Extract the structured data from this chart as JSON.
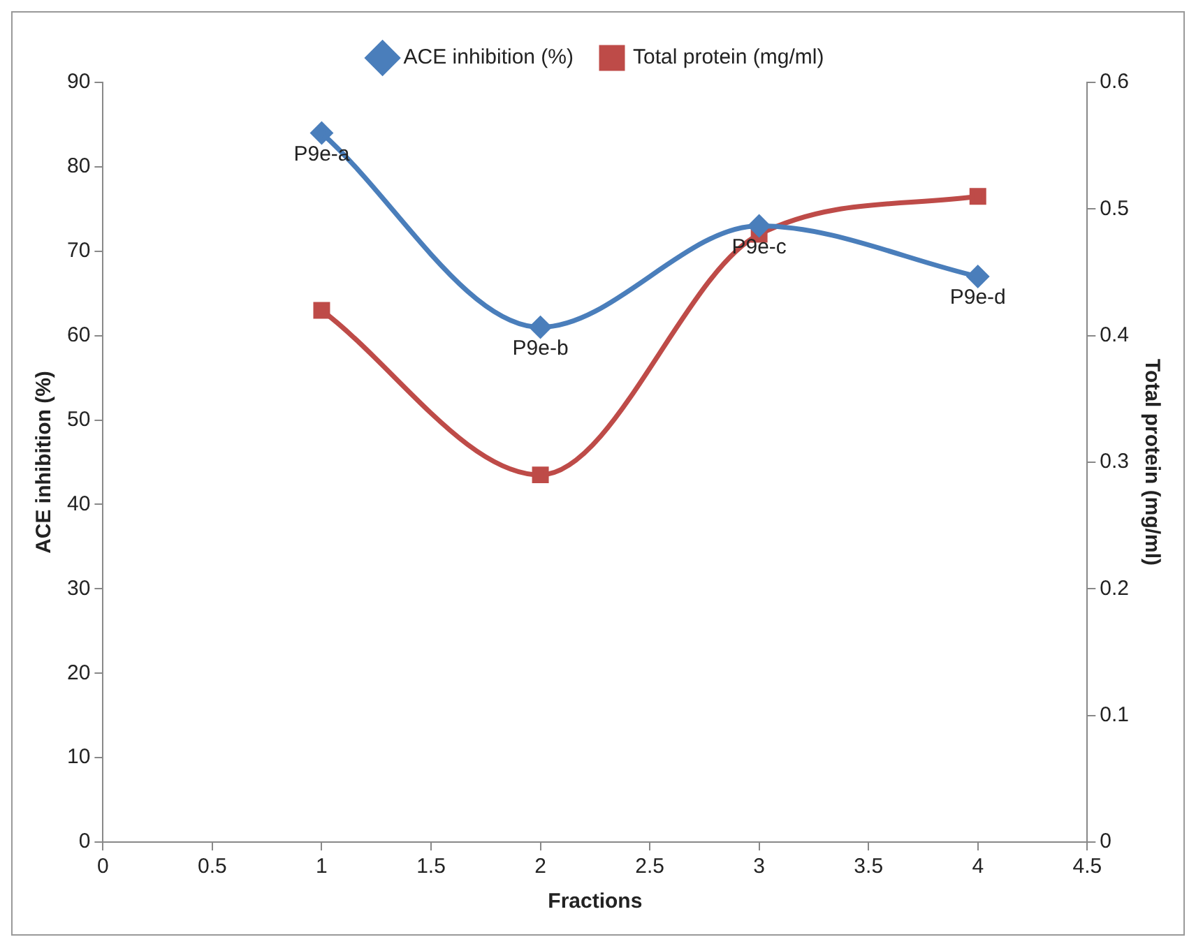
{
  "chart_data": {
    "type": "line",
    "xlabel": "Fractions",
    "ylabel": "ACE inhibition (%)",
    "y2label": "Total protein (mg/ml)",
    "x": [
      1,
      2,
      3,
      4
    ],
    "series": [
      {
        "name": "ACE inhibition (%)",
        "color": "#4a7ebb",
        "values": [
          84,
          61,
          73,
          67
        ],
        "marker": "diamond"
      },
      {
        "name": "Total protein (mg/ml)",
        "color": "#be4b48",
        "values": [
          0.42,
          0.29,
          0.48,
          0.51
        ],
        "marker": "square",
        "axis": "y2"
      }
    ],
    "xlim": [
      0,
      4.5
    ],
    "xticks": [
      0,
      0.5,
      1,
      1.5,
      2,
      2.5,
      3,
      3.5,
      4,
      4.5
    ],
    "ylim": [
      0,
      90
    ],
    "yticks": [
      0,
      10,
      20,
      30,
      40,
      50,
      60,
      70,
      80,
      90
    ],
    "y2lim": [
      0,
      0.6
    ],
    "y2ticks": [
      0,
      0.1,
      0.2,
      0.3,
      0.4,
      0.5,
      0.6
    ],
    "annotations": [
      {
        "text": "P9e-a",
        "x": 1,
        "y": 84
      },
      {
        "text": "P9e-b",
        "x": 2,
        "y": 61
      },
      {
        "text": "P9e-c",
        "x": 3,
        "y": 73
      },
      {
        "text": "P9e-d",
        "x": 4,
        "y": 67
      }
    ],
    "grid": false,
    "legend": "top",
    "line_style": "solid"
  }
}
